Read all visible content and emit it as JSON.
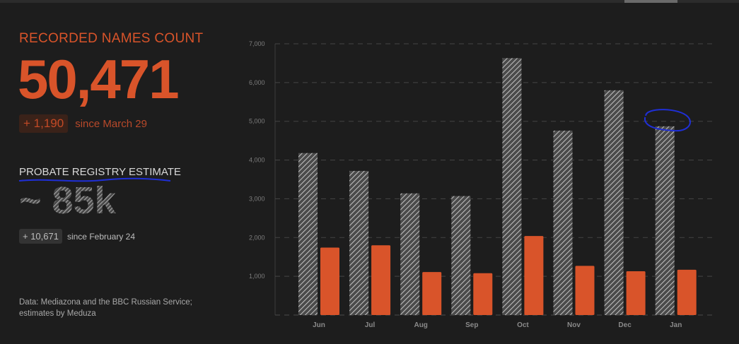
{
  "colors": {
    "accent": "#d9542a",
    "hatch": "#bdbdbd",
    "background": "#1d1d1d",
    "annotation": "#1f2fd6"
  },
  "summary": {
    "recorded_label": "RECORDED NAMES COUNT",
    "recorded_count": "50,471",
    "recorded_delta": "+ 1,190",
    "recorded_since": "since March 29",
    "probate_label": "PROBATE REGISTRY ESTIMATE",
    "probate_estimate": "~ 85k",
    "probate_delta": "+ 10,671",
    "probate_since": "since February 24",
    "source_note": "Data: Mediazona and the BBC Russian Service; estimates by Meduza"
  },
  "chart_data": {
    "type": "bar",
    "categories": [
      "Jun",
      "Jul",
      "Aug",
      "Sep",
      "Oct",
      "Nov",
      "Dec",
      "Jan"
    ],
    "series": [
      {
        "style": "hatched",
        "color": "#bdbdbd",
        "values": [
          4180,
          3720,
          3140,
          3070,
          6630,
          4760,
          5800,
          4870
        ]
      },
      {
        "style": "solid",
        "color": "#d9542a",
        "values": [
          1740,
          1800,
          1110,
          1080,
          2040,
          1270,
          1130,
          1170
        ]
      }
    ],
    "yticks": [
      "1,000",
      "2,000",
      "3,000",
      "4,000",
      "5,000",
      "6,000",
      "7,000"
    ],
    "ylim": [
      0,
      7000
    ],
    "grid": true,
    "annotation": {
      "type": "hand-drawn circle",
      "category": "Jan"
    }
  }
}
